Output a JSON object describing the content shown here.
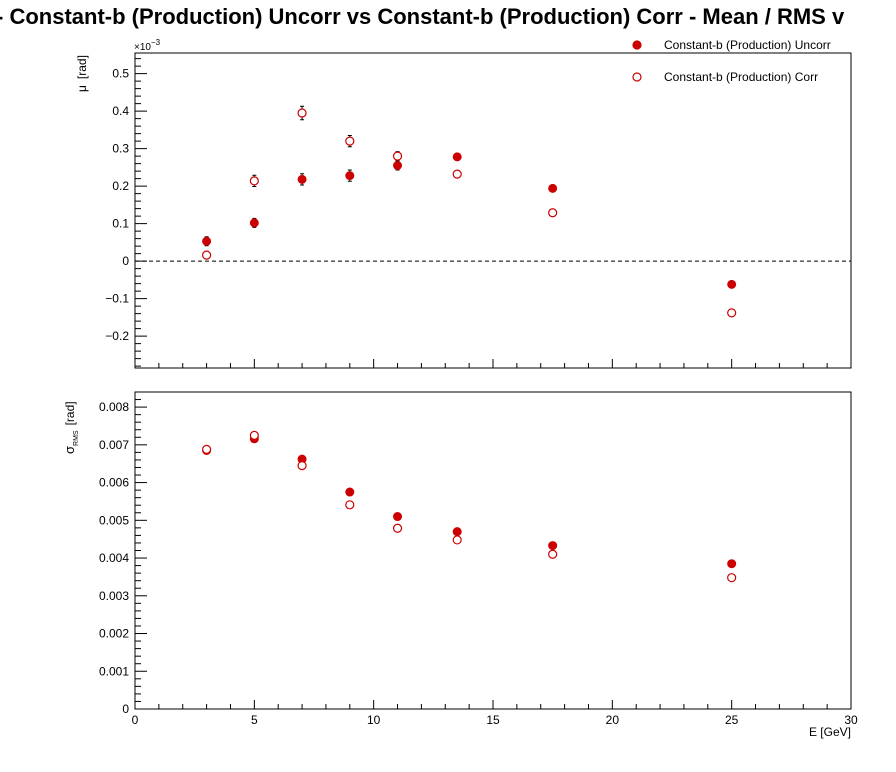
{
  "title": "-  Constant-b (Production) Uncorr vs Constant-b (Production) Corr  -  Mean / RMS v",
  "legend": {
    "position": "top-right",
    "entries": [
      {
        "label": "Constant-b (Production) Uncorr",
        "marker": "filled-circle",
        "color": "#cc0000"
      },
      {
        "label": "Constant-b (Production) Corr",
        "marker": "open-circle",
        "color": "#cc0000"
      }
    ]
  },
  "chart_data": [
    {
      "type": "scatter",
      "ylabel_symbol": "μ",
      "ylabel_unit": "[rad]",
      "exponent_label": "×10",
      "exponent_value": "−3",
      "xlim": [
        0,
        30
      ],
      "ylim": [
        -0.285,
        0.555
      ],
      "yticks": [
        -0.2,
        -0.1,
        0,
        0.1,
        0.2,
        0.3,
        0.4,
        0.5
      ],
      "ytick_labels": [
        "−0.2",
        "−0.1",
        "0",
        "0.1",
        "0.2",
        "0.3",
        "0.4",
        "0.5"
      ],
      "reference_line": 0,
      "series": [
        {
          "name": "Constant-b (Production) Uncorr",
          "marker": "filled-circle",
          "x": [
            3,
            5,
            7,
            9,
            11,
            13.5,
            17.5,
            25
          ],
          "y": [
            0.053,
            0.102,
            0.218,
            0.228,
            0.255,
            0.278,
            0.194,
            -0.062
          ],
          "err": [
            0.012,
            0.012,
            0.015,
            0.015,
            0.012,
            0.008,
            0.005,
            0.004
          ]
        },
        {
          "name": "Constant-b (Production) Corr",
          "marker": "open-circle",
          "x": [
            3,
            5,
            7,
            9,
            11,
            13.5,
            17.5,
            25
          ],
          "y": [
            0.016,
            0.214,
            0.395,
            0.32,
            0.28,
            0.232,
            0.129,
            -0.138
          ],
          "err": [
            0.01,
            0.015,
            0.018,
            0.015,
            0.012,
            0.006,
            0.005,
            0.004
          ]
        }
      ]
    },
    {
      "type": "scatter",
      "ylabel_symbol": "σ",
      "ylabel_sub": "RMS",
      "ylabel_unit": "[rad]",
      "xlabel": "E  [GeV]",
      "xlim": [
        0,
        30
      ],
      "ylim": [
        0,
        0.0084
      ],
      "xticks": [
        0,
        5,
        10,
        15,
        20,
        25,
        30
      ],
      "xtick_labels": [
        "0",
        "5",
        "10",
        "15",
        "20",
        "25",
        "30"
      ],
      "yticks": [
        0,
        0.001,
        0.002,
        0.003,
        0.004,
        0.005,
        0.006,
        0.007,
        0.008
      ],
      "ytick_labels": [
        "0",
        "0.001",
        "0.002",
        "0.003",
        "0.004",
        "0.005",
        "0.006",
        "0.007",
        "0.008"
      ],
      "series": [
        {
          "name": "Constant-b (Production) Uncorr",
          "marker": "filled-circle",
          "x": [
            3,
            5,
            7,
            9,
            11,
            13.5,
            17.5,
            25
          ],
          "y": [
            0.00685,
            0.00716,
            0.00662,
            0.00575,
            0.0051,
            0.0047,
            0.00433,
            0.00385
          ]
        },
        {
          "name": "Constant-b (Production) Corr",
          "marker": "open-circle",
          "x": [
            3,
            5,
            7,
            9,
            11,
            13.5,
            17.5,
            25
          ],
          "y": [
            0.00688,
            0.00725,
            0.00645,
            0.00541,
            0.00479,
            0.00448,
            0.0041,
            0.00348
          ]
        }
      ]
    }
  ]
}
